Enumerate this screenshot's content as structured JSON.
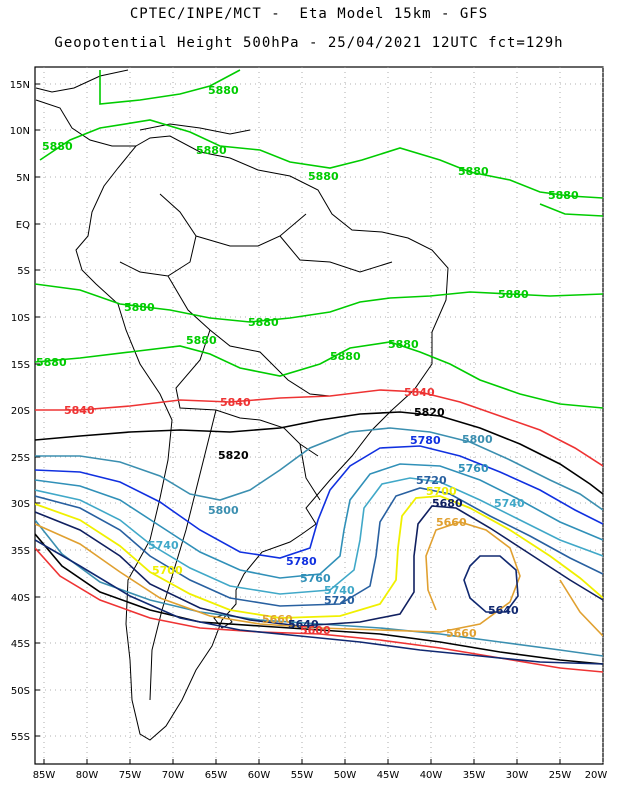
{
  "header": {
    "line1": "CPTEC/INPE/MCT -  Eta Model 15km - GFS",
    "line2": "Geopotential Height 500hPa - 25/04/2021 12UTC fct=129h"
  },
  "map": {
    "lat_ticks": [
      "15N",
      "10N",
      "5N",
      "EQ",
      "5S",
      "10S",
      "15S",
      "20S",
      "25S",
      "30S",
      "35S",
      "40S",
      "45S",
      "50S",
      "55S"
    ],
    "lon_ticks": [
      "85W",
      "80W",
      "75W",
      "70W",
      "65W",
      "60W",
      "55W",
      "50W",
      "45W",
      "40W",
      "35W",
      "30W",
      "25W",
      "20W"
    ],
    "colors": {
      "c5880": "#00cc00",
      "c5840": "#ee3333",
      "c5820": "#000000",
      "c5800": "#3b8fb0",
      "c5780": "#1030e0",
      "c5760": "#3090b8",
      "c5740": "#40a8c8",
      "c5720": "#2860a0",
      "c5700": "#f0f000",
      "c5680": "#102060",
      "c5660": "#e0a030",
      "c5640": "#102870",
      "coast": "#000000",
      "grid": "#888888"
    },
    "labels": {
      "l5880a": "5880",
      "l5880b": "5880",
      "l5880c": "5880",
      "l5880d": "5880",
      "l5880e": "5880",
      "l5880f": "5880",
      "l5880g": "5880",
      "l5880h": "5880",
      "l5880i": "5880",
      "l5880j": "5880",
      "l5880k": "5880",
      "l5880l": "5880",
      "l5880m": "5880",
      "l5840a": "5840",
      "l5840b": "5840",
      "l5840c": "5840",
      "l5820a": "5820",
      "l5820b": "5820",
      "l5800a": "5800",
      "l5800b": "5800",
      "l5780a": "5780",
      "l5780b": "5780",
      "l5760a": "5760",
      "l5760b": "5760",
      "l5740a": "5740",
      "l5740b": "5740",
      "l5740c": "5740",
      "l5720a": "5720",
      "l5720b": "5720",
      "l5700a": "5700",
      "l5700b": "5700",
      "l5680": "5680",
      "l5660a": "5660",
      "l5660b": "5660",
      "l5660c": "5660",
      "l5640a": "5640",
      "l5640b": "5640",
      "l5600": "5600"
    }
  }
}
